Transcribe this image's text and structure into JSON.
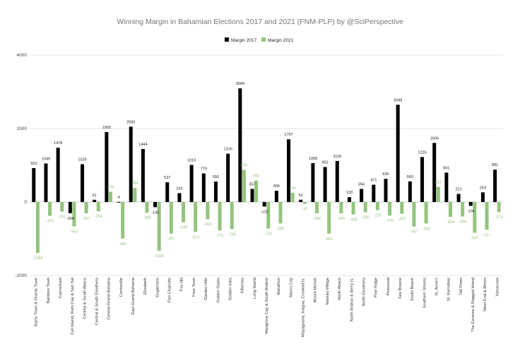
{
  "chart_data": {
    "type": "bar",
    "title": "Winning Margin in Bahamian Elections 2017 and 2021 (FNM-PLP) by @SciPerspective",
    "xlabel": "",
    "ylabel": "",
    "ylim": [
      -2000,
      4000
    ],
    "yticks": [
      -2000,
      0,
      2000,
      4000
    ],
    "grid": true,
    "legend_position": "top",
    "categories": [
      "Bains Town & Grants Town",
      "Bamboo Town",
      "Carmichael",
      "Cat Island, Rum Cay & San Sal",
      "Central & South Abaco",
      "Central & South Eleuthera",
      "Central Grand Bahama",
      "Centreville",
      "East Grand Bahama",
      "Elizabeth",
      "Englerston",
      "Fort Charlotte",
      "Fox Hill",
      "Free Town",
      "Garden Hills",
      "Golden Gates",
      "Golden Isles",
      "Killarney",
      "Long Island",
      "Mangrove Cay & South Andros",
      "Marathon",
      "Marco City",
      "Mayaguana, Inagua, Crooked Is.",
      "Mount Moriah",
      "Nassau Village",
      "North Abaco",
      "North Andros & Berry Is.",
      "North Eleuthera",
      "Pine Ridge",
      "Pinewood",
      "Sea Breeze",
      "South Beach",
      "Southern Shores",
      "St. Anne's",
      "St. Barnabas",
      "Tall Pines",
      "The Exumas & Ragged Island",
      "West End & Bimini",
      "Yamacraw"
    ],
    "series": [
      {
        "name": "Margin 2017",
        "color": "#000000",
        "values": [
          923,
          1049,
          1478,
          -304,
          1029,
          61,
          1905,
          4,
          2050,
          1444,
          -142,
          537,
          242,
          1010,
          779,
          556,
          1316,
          3094,
          357,
          -123,
          306,
          1707,
          62,
          1058,
          952,
          1118,
          133,
          356,
          471,
          630,
          2648,
          560,
          1225,
          1609,
          801,
          221,
          -104,
          263,
          881
        ]
      },
      {
        "name": "Margin 2021",
        "color": "#93c47d",
        "values": [
          -1384,
          -375,
          -261,
          -662,
          -307,
          -254,
          278,
          -996,
          384,
          -293,
          -1326,
          -857,
          -549,
          -813,
          -466,
          -775,
          -736,
          875,
          582,
          -722,
          -585,
          253,
          -50,
          -308,
          -861,
          -306,
          -338,
          -280,
          -220,
          -370,
          -320,
          -667,
          -584,
          412,
          -404,
          -394,
          -837,
          -757,
          -273
        ]
      }
    ]
  }
}
